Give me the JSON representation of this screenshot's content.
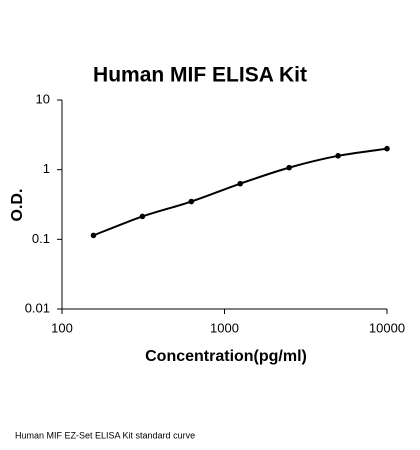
{
  "chart_data": {
    "type": "line",
    "title": "Human MIF ELISA Kit",
    "xlabel": "Concentration(pg/ml)",
    "ylabel": "O.D.",
    "x": [
      156.25,
      312.5,
      625,
      1250,
      2500,
      5000,
      10000
    ],
    "series": [
      {
        "color": "#000000",
        "values": [
          0.114,
          0.213,
          0.349,
          0.63,
          1.07,
          1.58,
          2.0
        ]
      }
    ],
    "xlim": [
      100,
      10000
    ],
    "ylim": [
      0.01,
      10
    ],
    "xticks": [
      100,
      1000,
      10000
    ],
    "yticks": [
      0.01,
      0.1,
      1,
      10
    ],
    "xscale": "log",
    "yscale": "log",
    "grid": false
  },
  "caption": "Human MIF EZ-Set ELISA Kit standard curve"
}
